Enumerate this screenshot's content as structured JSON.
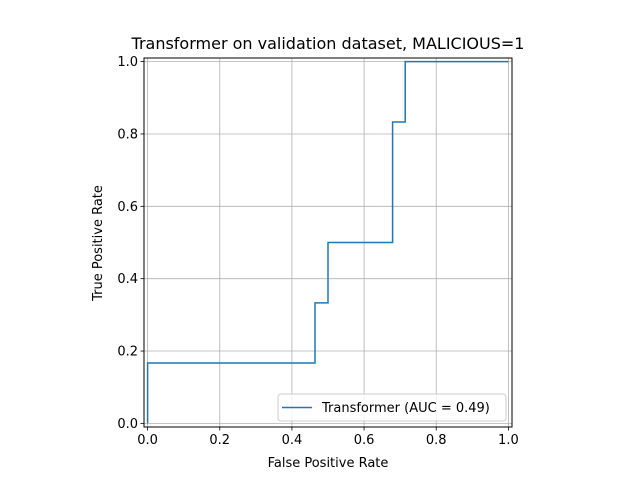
{
  "chart_data": {
    "type": "line",
    "title": "Transformer on validation dataset, MALICIOUS=1",
    "xlabel": "False Positive Rate",
    "ylabel": "True Positive Rate",
    "xlim": [
      -0.01,
      1.01
    ],
    "ylim": [
      -0.01,
      1.01
    ],
    "xticks": [
      0.0,
      0.2,
      0.4,
      0.6,
      0.8,
      1.0
    ],
    "yticks": [
      0.0,
      0.2,
      0.4,
      0.6,
      0.8,
      1.0
    ],
    "xtick_labels": [
      "0.0",
      "0.2",
      "0.4",
      "0.6",
      "0.8",
      "1.0"
    ],
    "ytick_labels": [
      "0.0",
      "0.2",
      "0.4",
      "0.6",
      "0.8",
      "1.0"
    ],
    "grid": true,
    "legend_position": "lower-right",
    "series": [
      {
        "name": "Transformer (AUC = 0.49)",
        "color": "#1f77b4",
        "x": [
          0.0,
          0.0,
          0.0,
          0.464,
          0.464,
          0.5,
          0.5,
          0.679,
          0.679,
          0.714,
          0.714,
          1.0
        ],
        "y": [
          0.0,
          0.0,
          0.167,
          0.167,
          0.333,
          0.333,
          0.5,
          0.5,
          0.833,
          0.833,
          1.0,
          1.0
        ]
      }
    ]
  }
}
